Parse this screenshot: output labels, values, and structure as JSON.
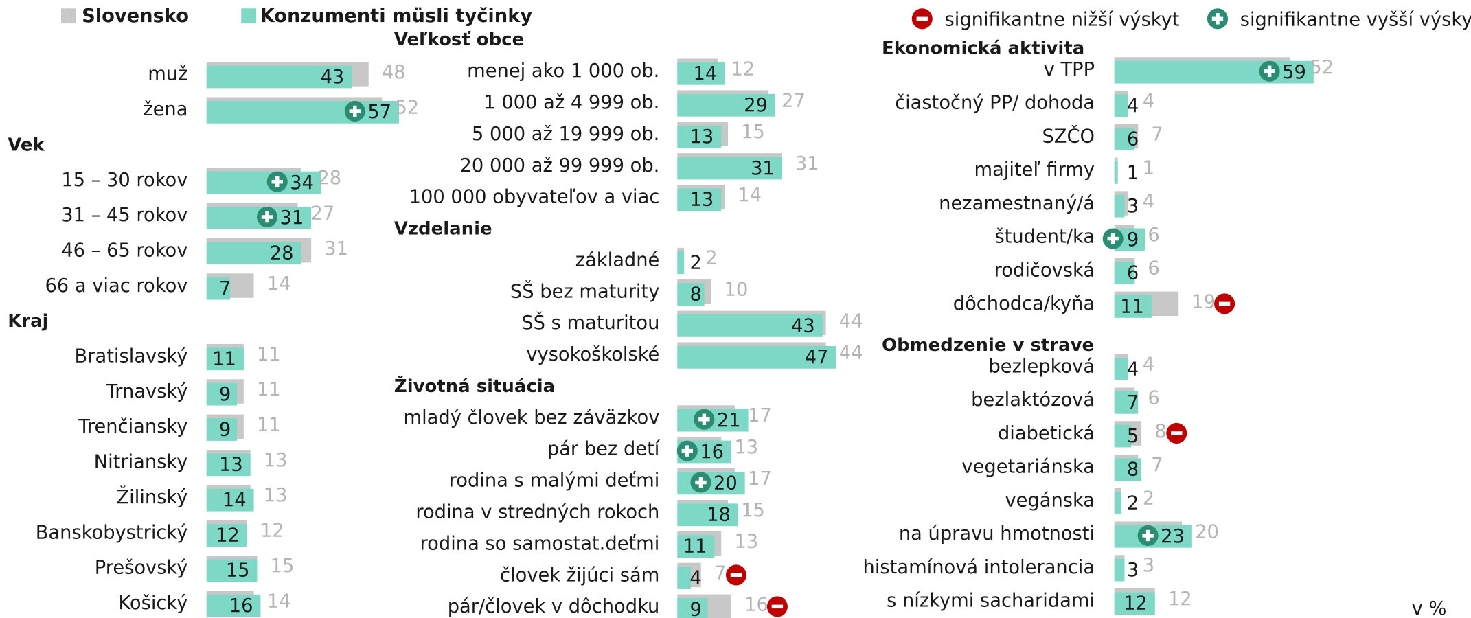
{
  "chart_data": {
    "type": "bar",
    "series": [
      {
        "name": "Slovensko",
        "color": "#c8c8c8"
      },
      {
        "name": "Konzumenti müsli tyčinky",
        "color": "#7dd8c6"
      }
    ],
    "significance": [
      {
        "name": "signifikantne nižší výskyt",
        "color": "#c00000",
        "symbol": "minus"
      },
      {
        "name": "signifikantne vyšší výskyt",
        "color": "#2a8c70",
        "symbol": "plus"
      }
    ],
    "unit_note": "v %",
    "panels": [
      {
        "sections": [
          {
            "categories": [
              "muž",
              "žena"
            ],
            "slovensko": [
              48,
              52
            ],
            "konzumenti": [
              43,
              57
            ],
            "sig": [
              null,
              1
            ]
          },
          {
            "title": "Vek",
            "categories": [
              "15 – 30 rokov",
              "31 – 45 rokov",
              "46 – 65 rokov",
              "66 a viac rokov"
            ],
            "slovensko": [
              28,
              27,
              31,
              14
            ],
            "konzumenti": [
              34,
              31,
              28,
              7
            ],
            "sig": [
              1,
              1,
              null,
              null
            ]
          },
          {
            "title": "Kraj",
            "categories": [
              "Bratislavský",
              "Trnavský",
              "Trenčiansky",
              "Nitriansky",
              "Žilinský",
              "Banskobystrický",
              "Prešovský",
              "Košický"
            ],
            "slovensko": [
              11,
              11,
              11,
              13,
              13,
              12,
              15,
              14
            ],
            "konzumenti": [
              11,
              9,
              9,
              13,
              14,
              12,
              15,
              16
            ],
            "sig": [
              null,
              null,
              null,
              null,
              null,
              null,
              null,
              null
            ]
          }
        ]
      },
      {
        "sections": [
          {
            "title": "Veľkosť obce",
            "categories": [
              "menej ako 1 000 ob.",
              "1 000 až 4 999 ob.",
              "5 000 až 19 999 ob.",
              "20 000 až 99 999 ob.",
              "100 000 obyvateľov a viac"
            ],
            "slovensko": [
              12,
              27,
              15,
              31,
              14
            ],
            "konzumenti": [
              14,
              29,
              13,
              31,
              13
            ],
            "sig": [
              null,
              null,
              null,
              null,
              null
            ]
          },
          {
            "title": "Vzdelanie",
            "categories": [
              "základné",
              "SŠ bez maturity",
              "SŠ  s maturitou",
              "vysokoškolské"
            ],
            "slovensko": [
              2,
              10,
              44,
              44
            ],
            "konzumenti": [
              2,
              8,
              43,
              47
            ],
            "sig": [
              null,
              null,
              null,
              null
            ]
          },
          {
            "title": "Životná situácia",
            "categories": [
              "mladý človek bez záväzkov",
              "pár bez detí",
              "rodina s malými deťmi",
              "rodina v stredných rokoch",
              "rodina so samostat.deťmi",
              "človek žijúci sám",
              "pár/človek v dôchodku"
            ],
            "slovensko": [
              17,
              13,
              17,
              15,
              13,
              7,
              16
            ],
            "konzumenti": [
              21,
              16,
              20,
              18,
              11,
              4,
              9
            ],
            "sig": [
              1,
              1,
              1,
              null,
              null,
              0,
              0
            ]
          }
        ]
      },
      {
        "sections": [
          {
            "title": "Ekonomická aktivita",
            "categories": [
              "v TPP",
              "čiastočný PP/ dohoda",
              "SZČO",
              "majiteľ firmy",
              "nezamestnaný/á",
              "študent/ka",
              "rodičovská",
              "dôchodca/kyňa"
            ],
            "slovensko": [
              52,
              4,
              7,
              1,
              4,
              6,
              6,
              19
            ],
            "konzumenti": [
              59,
              4,
              6,
              1,
              3,
              9,
              6,
              11
            ],
            "sig": [
              1,
              null,
              null,
              null,
              null,
              1,
              null,
              0
            ]
          },
          {
            "title": "Obmedzenie v strave",
            "categories": [
              "bezlepková",
              "bezlaktózová",
              "diabetická",
              "vegetariánska",
              "vegánska",
              "na úpravu hmotnosti",
              "histamínová intolerancia",
              "s nízkymi sacharidami"
            ],
            "slovensko": [
              4,
              6,
              8,
              7,
              2,
              20,
              3,
              12
            ],
            "konzumenti": [
              4,
              7,
              5,
              8,
              2,
              23,
              3,
              12
            ],
            "sig": [
              null,
              null,
              0,
              null,
              null,
              1,
              null,
              null
            ]
          }
        ]
      }
    ]
  }
}
